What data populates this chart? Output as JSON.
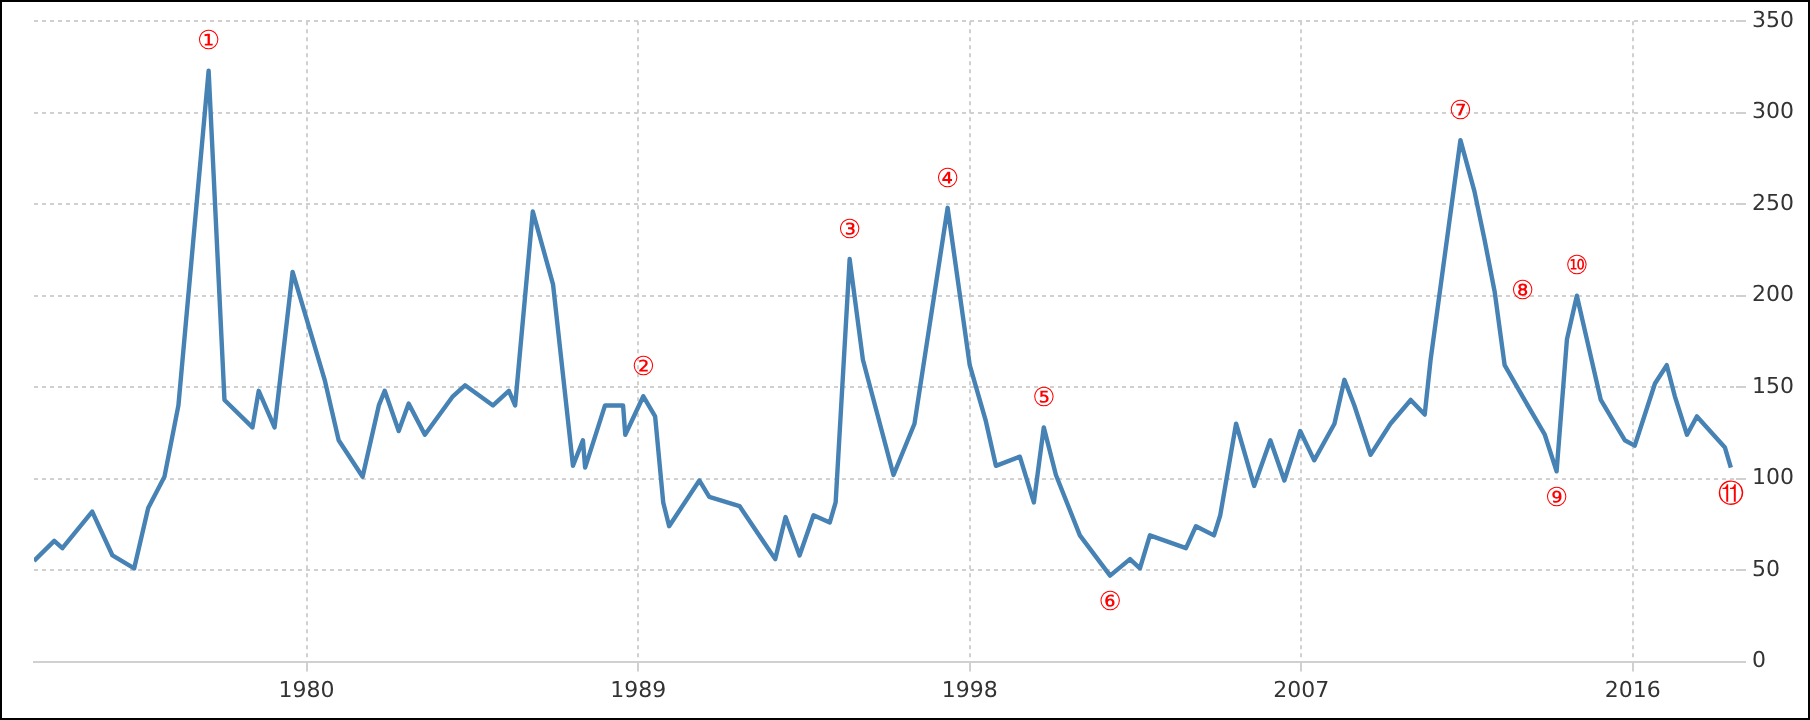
{
  "chart_data": {
    "type": "line",
    "x": [
      1972.6,
      1973.15,
      1973.37,
      1974.18,
      1974.73,
      1975.32,
      1975.7,
      1976.14,
      1976.52,
      1977.34,
      1977.77,
      1978.53,
      1978.7,
      1979.13,
      1979.62,
      1980.49,
      1980.87,
      1981.52,
      1981.96,
      1982.12,
      1982.5,
      1982.77,
      1983.21,
      1983.97,
      1984.3,
      1985.06,
      1985.49,
      1985.66,
      1986.14,
      1986.69,
      1987.23,
      1987.5,
      1987.56,
      1988.1,
      1988.59,
      1988.65,
      1989.14,
      1989.46,
      1989.68,
      1989.84,
      1990.66,
      1990.93,
      1991.75,
      1992.72,
      1993.0,
      1993.38,
      1993.76,
      1994.2,
      1994.36,
      1994.74,
      1995.1,
      1995.93,
      1996.5,
      1997.4,
      1998.0,
      1998.43,
      1998.71,
      1999.36,
      1999.74,
      2000.01,
      2000.34,
      2000.99,
      2001.81,
      2002.35,
      2002.62,
      2002.89,
      2003.87,
      2004.14,
      2004.63,
      2004.8,
      2005.23,
      2005.72,
      2006.16,
      2006.54,
      2006.97,
      2007.35,
      2007.9,
      2008.17,
      2008.44,
      2008.88,
      2009.42,
      2009.97,
      2010.35,
      2010.51,
      2011.32,
      2011.7,
      2011.97,
      2012.25,
      2012.52,
      2013.06,
      2013.61,
      2013.93,
      2014.21,
      2014.48,
      2015.13,
      2015.78,
      2016.05,
      2016.6,
      2016.92,
      2017.14,
      2017.47,
      2017.74,
      2018.5,
      2018.66
    ],
    "series": [
      {
        "color": "#4682b4",
        "values": [
          55,
          66,
          62,
          82,
          58,
          51,
          84,
          101,
          140,
          323,
          143,
          128,
          148,
          128,
          213,
          154,
          121,
          101,
          140,
          148,
          126,
          141,
          124,
          145,
          151,
          140,
          148,
          140,
          246,
          206,
          107,
          121,
          106,
          140,
          140,
          124,
          145,
          134,
          87,
          74,
          99,
          90,
          85,
          56,
          79,
          58,
          80,
          76,
          87,
          220,
          165,
          102,
          130,
          248,
          162,
          132,
          107,
          112,
          87,
          128,
          102,
          69,
          47,
          56,
          51,
          69,
          62,
          74,
          69,
          80,
          130,
          96,
          121,
          99,
          126,
          110,
          130,
          154,
          140,
          113,
          130,
          143,
          135,
          165,
          285,
          257,
          231,
          202,
          162,
          143,
          124,
          104,
          176,
          200,
          143,
          121,
          118,
          152,
          162,
          145,
          124,
          134,
          117,
          106
        ]
      }
    ],
    "xlim": [
      1972.6,
      2018.8
    ],
    "xticks": [
      1980,
      1989,
      1998,
      2007,
      2016
    ],
    "ylim": [
      0,
      350
    ],
    "yticks": [
      0,
      50,
      100,
      150,
      200,
      250,
      300,
      350
    ],
    "grid": true,
    "marker": "none",
    "line_style": "solid",
    "annotations": [
      {
        "text": "①",
        "x": 1977.34,
        "y": 323
      },
      {
        "text": "②",
        "x": 1989.14,
        "y": 145
      },
      {
        "text": "③",
        "x": 1994.74,
        "y": 220
      },
      {
        "text": "④",
        "x": 1997.4,
        "y": 248
      },
      {
        "text": "⑤",
        "x": 2000.01,
        "y": 128
      },
      {
        "text": "⑥",
        "x": 2001.81,
        "y": 47
      },
      {
        "text": "⑦",
        "x": 2011.32,
        "y": 285
      },
      {
        "text": "⑧",
        "x": 2012.25,
        "y": 202
      },
      {
        "text": "⑨",
        "x": 2013.93,
        "y": 104
      },
      {
        "text": "⑩",
        "x": 2014.48,
        "y": 200
      },
      {
        "text": "⑪",
        "x": 2018.66,
        "y": 106
      }
    ]
  }
}
